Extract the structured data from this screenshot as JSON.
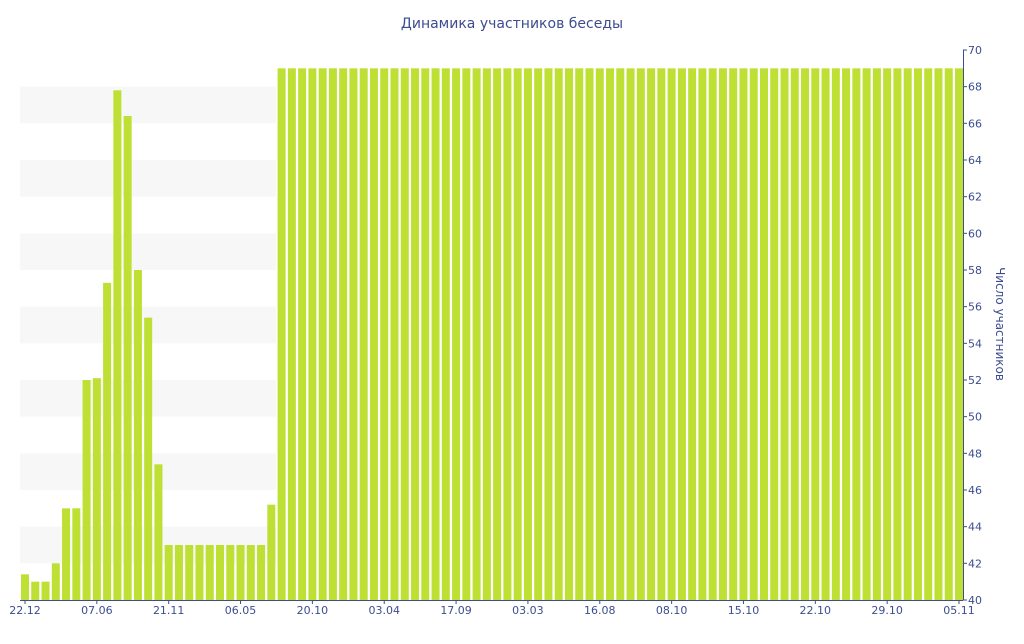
{
  "chart_data": {
    "type": "bar",
    "title": "Динамика участников беседы",
    "xlabel": "",
    "ylabel": "Число участников",
    "ylim": [
      40,
      70
    ],
    "yticks": [
      40,
      42,
      44,
      46,
      48,
      50,
      52,
      54,
      56,
      58,
      60,
      62,
      64,
      66,
      68,
      70
    ],
    "y_axis_side": "right",
    "x_tick_labels": [
      "22.12",
      "07.06",
      "21.11",
      "06.05",
      "20.10",
      "03.04",
      "17.09",
      "03.03",
      "16.08",
      "08.10",
      "15.10",
      "22.10",
      "29.10",
      "05.11"
    ],
    "x_tick_bar_index": [
      0,
      7,
      14,
      21,
      28,
      35,
      42,
      49,
      56,
      63,
      70,
      77,
      84,
      91
    ],
    "grid_bands": true,
    "bar_color": "#bedf34",
    "axis_color": "#3b4d8f",
    "band_color": "#f7f7f7",
    "values": [
      41.4,
      41.0,
      41.0,
      42.0,
      45.0,
      45.0,
      52.0,
      52.1,
      57.3,
      67.8,
      66.4,
      58.0,
      55.4,
      47.4,
      43.0,
      43.0,
      43.0,
      43.0,
      43.0,
      43.0,
      43.0,
      43.0,
      43.0,
      43.0,
      45.2,
      69.0,
      69.0,
      69.0,
      69.0,
      69.0,
      69.0,
      69.0,
      69.0,
      69.0,
      69.0,
      69.0,
      69.0,
      69.0,
      69.0,
      69.0,
      69.0,
      69.0,
      69.0,
      69.0,
      69.0,
      69.0,
      69.0,
      69.0,
      69.0,
      69.0,
      69.0,
      69.0,
      69.0,
      69.0,
      69.0,
      69.0,
      69.0,
      69.0,
      69.0,
      69.0,
      69.0,
      69.0,
      69.0,
      69.0,
      69.0,
      69.0,
      69.0,
      69.0,
      69.0,
      69.0,
      69.0,
      69.0,
      69.0,
      69.0,
      69.0,
      69.0,
      69.0,
      69.0,
      69.0,
      69.0,
      69.0,
      69.0,
      69.0,
      69.0,
      69.0,
      69.0,
      69.0,
      69.0,
      69.0,
      69.0,
      69.0,
      69.0
    ]
  }
}
